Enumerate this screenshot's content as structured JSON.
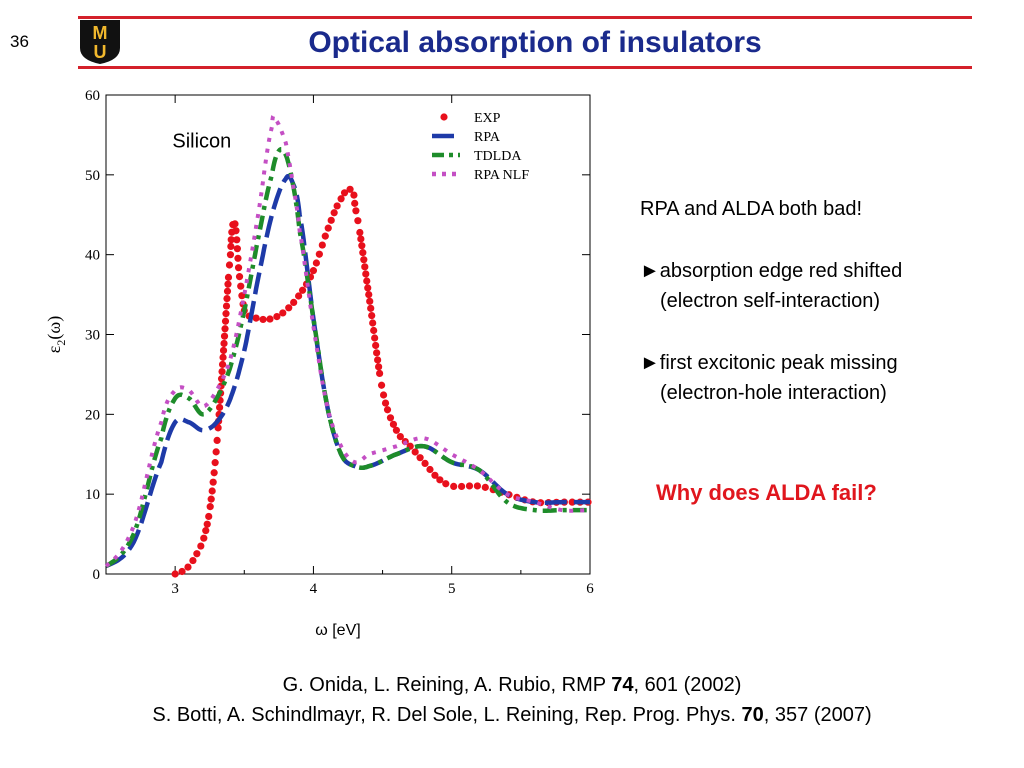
{
  "slide": {
    "number": "36",
    "title": "Optical absorption of insulators",
    "logo_letters": "MU",
    "colors": {
      "rule": "#d4202a",
      "title": "#1a2a8c",
      "emphasis": "#e0161d",
      "logo_gold": "#f1b82d"
    }
  },
  "notes": {
    "line1": "RPA and ALDA both bad!",
    "bullet1": "►absorption edge red shifted",
    "bullet1_sub": "(electron self-interaction)",
    "bullet2": "►first excitonic peak missing",
    "bullet2_sub": "(electron-hole interaction)",
    "question": "Why does ALDA fail?"
  },
  "references": {
    "ref1_pre": "G. Onida, L. Reining, A. Rubio, RMP ",
    "ref1_vol": "74",
    "ref1_post": ", 601 (2002)",
    "ref2_pre": "S. Botti, A. Schindlmayr, R. Del Sole, L. Reining, Rep. Prog. Phys. ",
    "ref2_vol": "70",
    "ref2_post": ", 357 (2007)"
  },
  "chart_data": {
    "type": "line",
    "annotation": "Silicon",
    "xlabel": "ω [eV]",
    "ylabel_main": "ε",
    "ylabel_sub": "2",
    "ylabel_tail": "(ω)",
    "xlim": [
      2.5,
      6
    ],
    "ylim": [
      0,
      60
    ],
    "xticks": [
      3,
      4,
      5,
      6
    ],
    "yticks": [
      0,
      10,
      20,
      30,
      40,
      50,
      60
    ],
    "legend_position": "top-right",
    "series": [
      {
        "name": "EXP",
        "style": "points",
        "color": "#e8101c",
        "x": [
          3.0,
          3.1,
          3.2,
          3.25,
          3.3,
          3.35,
          3.4,
          3.42,
          3.44,
          3.46,
          3.5,
          3.6,
          3.7,
          3.8,
          3.9,
          4.0,
          4.1,
          4.2,
          4.25,
          4.28,
          4.3,
          4.4,
          4.5,
          4.6,
          4.7,
          4.8,
          4.9,
          5.0,
          5.2,
          5.4,
          5.6,
          5.8,
          6.0
        ],
        "y": [
          0,
          1,
          4,
          8,
          16,
          28,
          40,
          44,
          43,
          38,
          33,
          32,
          32,
          33,
          35,
          38,
          43,
          47,
          48,
          48,
          46,
          35,
          23,
          18,
          16,
          14,
          12,
          11,
          11,
          10,
          9,
          9,
          9
        ]
      },
      {
        "name": "RPA",
        "style": "dashed",
        "color": "#1e3aa8",
        "x": [
          2.5,
          2.7,
          2.9,
          3.0,
          3.1,
          3.2,
          3.3,
          3.4,
          3.5,
          3.6,
          3.7,
          3.8,
          3.85,
          3.9,
          4.0,
          4.1,
          4.2,
          4.3,
          4.4,
          4.6,
          4.8,
          5.0,
          5.2,
          5.4,
          5.6,
          5.8,
          6.0
        ],
        "y": [
          1,
          4,
          14,
          19,
          19,
          18,
          19,
          22,
          28,
          37,
          45,
          49.5,
          49,
          45,
          32,
          21,
          15,
          13.5,
          13.5,
          15,
          16,
          14,
          13,
          10,
          9,
          9,
          9
        ]
      },
      {
        "name": "TDLDA",
        "style": "dashdot",
        "color": "#1e8c2a",
        "x": [
          2.5,
          2.7,
          2.9,
          3.0,
          3.1,
          3.2,
          3.3,
          3.4,
          3.5,
          3.6,
          3.7,
          3.75,
          3.8,
          3.85,
          3.9,
          4.0,
          4.1,
          4.2,
          4.3,
          4.4,
          4.6,
          4.8,
          5.0,
          5.2,
          5.4,
          5.6,
          5.8,
          6.0
        ],
        "y": [
          1,
          5,
          17,
          22,
          22,
          20,
          22,
          26,
          33,
          42,
          50,
          53,
          52.5,
          49,
          43,
          32,
          21,
          15,
          13.5,
          13.5,
          15,
          16,
          14,
          13,
          9,
          8,
          8,
          8
        ]
      },
      {
        "name": "RPA NLF",
        "style": "dotted",
        "color": "#c44fc4",
        "x": [
          2.5,
          2.7,
          2.9,
          3.0,
          3.1,
          3.2,
          3.3,
          3.4,
          3.5,
          3.6,
          3.7,
          3.72,
          3.8,
          3.85,
          3.9,
          4.0,
          4.1,
          4.2,
          4.3,
          4.4,
          4.6,
          4.8,
          5.0,
          5.2,
          5.4,
          5.6,
          5.8,
          6.0
        ],
        "y": [
          1,
          6,
          19,
          23,
          23,
          21,
          23,
          27,
          35,
          45,
          56,
          57,
          54,
          49,
          43,
          31,
          21,
          16,
          14,
          15,
          16,
          17,
          15,
          13,
          10,
          9,
          8,
          8
        ]
      }
    ]
  }
}
